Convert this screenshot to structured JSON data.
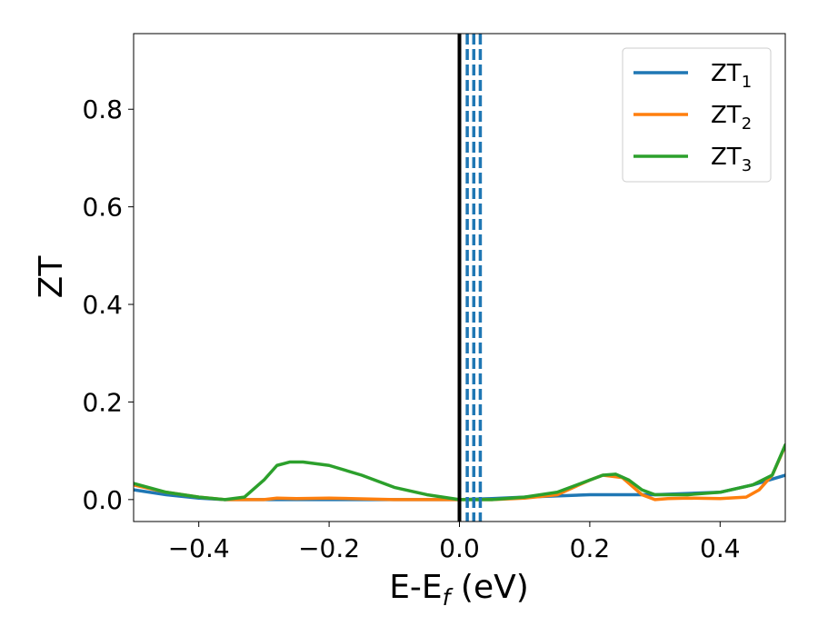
{
  "chart_data": {
    "type": "line",
    "xlabel": {
      "main": "E-E",
      "sub": "f",
      "suffix": " (eV)"
    },
    "ylabel": "ZT",
    "xlim": [
      -0.5,
      0.5
    ],
    "ylim": [
      -0.045,
      0.955
    ],
    "xticks": [
      {
        "value": -0.4,
        "label": "−0.4"
      },
      {
        "value": -0.2,
        "label": "−0.2"
      },
      {
        "value": 0.0,
        "label": "0.0"
      },
      {
        "value": 0.2,
        "label": "0.2"
      },
      {
        "value": 0.4,
        "label": "0.4"
      }
    ],
    "yticks": [
      {
        "value": 0.0,
        "label": "0.0"
      },
      {
        "value": 0.2,
        "label": "0.2"
      },
      {
        "value": 0.4,
        "label": "0.4"
      },
      {
        "value": 0.6,
        "label": "0.6"
      },
      {
        "value": 0.8,
        "label": "0.8"
      }
    ],
    "grid": false,
    "legend": "top-right",
    "vlines": [
      {
        "x": 0.0,
        "color": "#000000",
        "style": "solid"
      },
      {
        "x": 0.012,
        "color": "#1f77b4",
        "style": "dashed"
      },
      {
        "x": 0.022,
        "color": "#1f77b4",
        "style": "dashed"
      },
      {
        "x": 0.032,
        "color": "#1f77b4",
        "style": "dashed"
      }
    ],
    "series": [
      {
        "name": "ZT",
        "sub": "1",
        "color": "#1f77b4",
        "x": [
          -0.5,
          -0.45,
          -0.4,
          -0.36,
          -0.3,
          -0.2,
          -0.1,
          0.0,
          0.05,
          0.1,
          0.2,
          0.3,
          0.4,
          0.45,
          0.5
        ],
        "y": [
          0.02,
          0.01,
          0.003,
          0.0,
          0.0,
          0.0,
          0.0,
          0.0,
          0.002,
          0.005,
          0.01,
          0.01,
          0.015,
          0.03,
          0.05
        ]
      },
      {
        "name": "ZT",
        "sub": "2",
        "color": "#ff7f0e",
        "x": [
          -0.5,
          -0.45,
          -0.4,
          -0.36,
          -0.3,
          -0.28,
          -0.25,
          -0.2,
          -0.1,
          0.0,
          0.05,
          0.1,
          0.15,
          0.2,
          0.22,
          0.25,
          0.28,
          0.3,
          0.32,
          0.35,
          0.4,
          0.44,
          0.46,
          0.48,
          0.5
        ],
        "y": [
          0.03,
          0.015,
          0.005,
          0.0,
          0.0,
          0.003,
          0.002,
          0.003,
          0.0,
          0.0,
          0.0,
          0.003,
          0.01,
          0.04,
          0.05,
          0.045,
          0.01,
          0.0,
          0.002,
          0.003,
          0.002,
          0.005,
          0.02,
          0.05,
          0.11
        ]
      },
      {
        "name": "ZT",
        "sub": "3",
        "color": "#2ca02c",
        "x": [
          -0.5,
          -0.45,
          -0.4,
          -0.36,
          -0.33,
          -0.3,
          -0.28,
          -0.26,
          -0.24,
          -0.2,
          -0.15,
          -0.1,
          -0.05,
          0.0,
          0.05,
          0.1,
          0.15,
          0.2,
          0.22,
          0.24,
          0.26,
          0.28,
          0.3,
          0.35,
          0.4,
          0.45,
          0.48,
          0.5
        ],
        "y": [
          0.033,
          0.015,
          0.005,
          0.0,
          0.005,
          0.04,
          0.07,
          0.077,
          0.077,
          0.07,
          0.05,
          0.025,
          0.01,
          0.0,
          0.0,
          0.005,
          0.015,
          0.04,
          0.05,
          0.052,
          0.04,
          0.02,
          0.01,
          0.01,
          0.015,
          0.03,
          0.05,
          0.112
        ]
      }
    ]
  }
}
